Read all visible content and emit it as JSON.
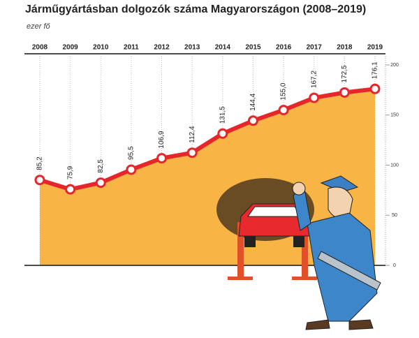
{
  "chart_data": {
    "type": "area-line",
    "title": "Járműgyártásban dolgozók száma Magyarországon (2008–2019)",
    "y_label": "ezer fő",
    "categories": [
      "2008",
      "2009",
      "2010",
      "2011",
      "2012",
      "2013",
      "2014",
      "2015",
      "2016",
      "2017",
      "2018",
      "2019"
    ],
    "values": [
      85.2,
      75.9,
      82.5,
      95.5,
      106.9,
      112.4,
      131.5,
      144.4,
      155.0,
      167.2,
      172.5,
      176.1
    ],
    "value_labels": [
      "85,2",
      "75,9",
      "82,5",
      "95,5",
      "106,9",
      "112,4",
      "131,5",
      "144,4",
      "155,0",
      "167,2",
      "172,5",
      "176,1"
    ],
    "color": "#e5262b",
    "area_color": "#f8b445",
    "ylim": [
      0,
      200
    ],
    "yticks": [
      0,
      50,
      100,
      150,
      200
    ],
    "grid": true
  }
}
